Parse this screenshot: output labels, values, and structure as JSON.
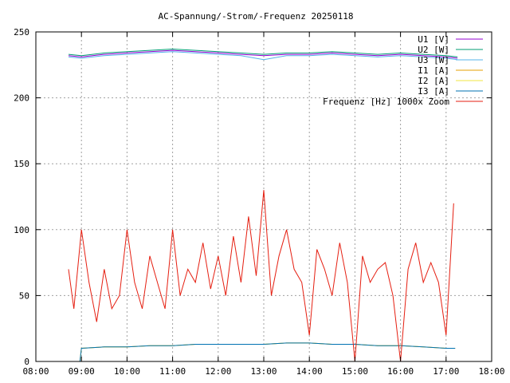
{
  "chart_data": {
    "type": "line",
    "title": "AC-Spannung/-Strom/-Frequenz 20250118",
    "xlabel": "",
    "ylabel": "",
    "xlim": [
      "08:00",
      "18:00"
    ],
    "ylim": [
      0,
      250
    ],
    "x_ticks": [
      "08:00",
      "09:00",
      "10:00",
      "11:00",
      "12:00",
      "13:00",
      "14:00",
      "15:00",
      "16:00",
      "17:00",
      "18:00"
    ],
    "y_ticks": [
      "0",
      "50",
      "100",
      "150",
      "200",
      "250"
    ],
    "grid": true,
    "legend_position": "top-right",
    "series": [
      {
        "name": "U1 [V]",
        "color": "#9400d3",
        "x": [
          "08:43",
          "09:00",
          "09:30",
          "10:00",
          "10:30",
          "11:00",
          "11:30",
          "12:00",
          "12:30",
          "13:00",
          "13:30",
          "14:00",
          "14:30",
          "15:00",
          "15:30",
          "16:00",
          "16:30",
          "17:00",
          "17:15"
        ],
        "y": [
          232,
          231,
          233,
          234,
          235,
          236,
          235,
          234,
          233,
          232,
          233,
          233,
          234,
          233,
          232,
          233,
          232,
          231,
          230
        ]
      },
      {
        "name": "U2 [W]",
        "color": "#009e73",
        "x": [
          "08:43",
          "09:00",
          "09:30",
          "10:00",
          "10:30",
          "11:00",
          "11:30",
          "12:00",
          "12:30",
          "13:00",
          "13:30",
          "14:00",
          "14:30",
          "15:00",
          "15:30",
          "16:00",
          "16:30",
          "17:00",
          "17:15"
        ],
        "y": [
          233,
          232,
          234,
          235,
          236,
          237,
          236,
          235,
          234,
          233,
          234,
          234,
          235,
          234,
          233,
          234,
          233,
          232,
          231
        ]
      },
      {
        "name": "U3 [W]",
        "color": "#56b4e9",
        "x": [
          "08:43",
          "09:00",
          "09:30",
          "10:00",
          "10:30",
          "11:00",
          "11:30",
          "12:00",
          "12:30",
          "13:00",
          "13:30",
          "14:00",
          "14:30",
          "15:00",
          "15:30",
          "16:00",
          "16:30",
          "17:00",
          "17:15"
        ],
        "y": [
          231,
          230,
          232,
          233,
          234,
          235,
          234,
          233,
          232,
          229,
          232,
          232,
          233,
          232,
          231,
          232,
          231,
          230,
          229
        ]
      },
      {
        "name": "I1 [A]",
        "color": "#e69f00",
        "x": [
          "08:58",
          "09:00",
          "09:30",
          "10:00",
          "10:30",
          "11:00",
          "11:30",
          "12:00",
          "12:30",
          "13:00",
          "13:30",
          "13:45",
          "14:00",
          "14:30",
          "15:00",
          "15:30",
          "16:00",
          "16:30",
          "17:00",
          "17:12"
        ],
        "y": [
          0,
          10,
          11,
          11,
          12,
          12,
          13,
          13,
          13,
          13,
          14,
          14,
          14,
          13,
          13,
          12,
          12,
          11,
          10,
          10
        ]
      },
      {
        "name": "I2 [A]",
        "color": "#f0e442",
        "x": [
          "08:58",
          "09:00",
          "09:30",
          "10:00",
          "10:30",
          "11:00",
          "11:30",
          "12:00",
          "12:30",
          "13:00",
          "13:30",
          "13:45",
          "14:00",
          "14:30",
          "15:00",
          "15:30",
          "16:00",
          "16:30",
          "17:00",
          "17:12"
        ],
        "y": [
          0,
          10,
          11,
          11,
          12,
          12,
          13,
          13,
          13,
          13,
          14,
          14,
          14,
          13,
          13,
          12,
          12,
          11,
          10,
          10
        ]
      },
      {
        "name": "I3 [A]",
        "color": "#0072b2",
        "x": [
          "08:58",
          "09:00",
          "09:30",
          "10:00",
          "10:30",
          "11:00",
          "11:30",
          "12:00",
          "12:30",
          "13:00",
          "13:30",
          "13:45",
          "14:00",
          "14:30",
          "15:00",
          "15:30",
          "16:00",
          "16:30",
          "17:00",
          "17:12"
        ],
        "y": [
          0,
          10,
          11,
          11,
          12,
          12,
          13,
          13,
          13,
          13,
          14,
          14,
          14,
          13,
          13,
          12,
          12,
          11,
          10,
          10
        ]
      },
      {
        "name": "Frequenz [Hz] 1000x Zoom",
        "color": "#e51e10",
        "x": [
          "08:43",
          "08:50",
          "09:00",
          "09:10",
          "09:20",
          "09:30",
          "09:40",
          "09:50",
          "10:00",
          "10:10",
          "10:20",
          "10:30",
          "10:40",
          "10:50",
          "11:00",
          "11:10",
          "11:20",
          "11:30",
          "11:40",
          "11:50",
          "12:00",
          "12:10",
          "12:20",
          "12:30",
          "12:40",
          "12:50",
          "13:00",
          "13:10",
          "13:20",
          "13:30",
          "13:40",
          "13:50",
          "14:00",
          "14:10",
          "14:20",
          "14:30",
          "14:40",
          "14:50",
          "15:00",
          "15:10",
          "15:20",
          "15:30",
          "15:40",
          "15:50",
          "16:00",
          "16:10",
          "16:20",
          "16:30",
          "16:40",
          "16:50",
          "17:00",
          "17:10"
        ],
        "y": [
          70,
          40,
          100,
          60,
          30,
          70,
          40,
          50,
          100,
          60,
          40,
          80,
          60,
          40,
          100,
          50,
          70,
          60,
          90,
          55,
          80,
          50,
          95,
          60,
          110,
          65,
          130,
          50,
          80,
          100,
          70,
          60,
          20,
          85,
          70,
          50,
          90,
          60,
          0,
          80,
          60,
          70,
          75,
          50,
          0,
          70,
          90,
          60,
          75,
          60,
          20,
          120
        ]
      }
    ]
  }
}
